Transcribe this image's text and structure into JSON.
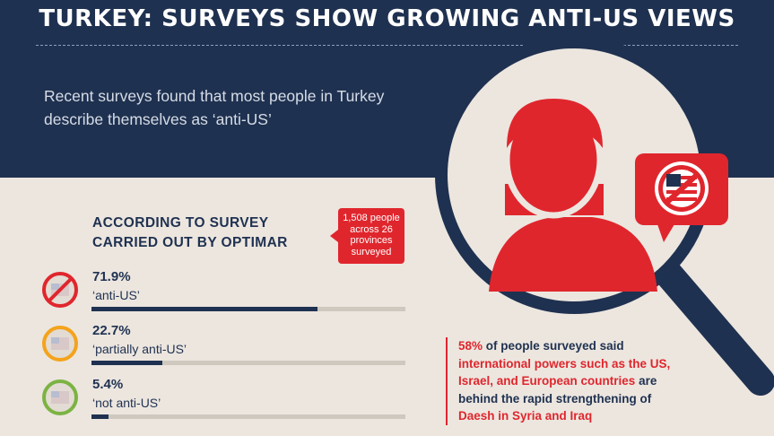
{
  "header": {
    "title": "TURKEY: SURVEYS SHOW GROWING ANTI-US VIEWS",
    "intro_line1": "Recent surveys found that most people in Turkey",
    "intro_line2": "describe themselves as ‘anti-US’"
  },
  "survey": {
    "heading_line1": "ACCORDING TO SURVEY",
    "heading_line2": "CARRIED OUT BY OPTIMAR",
    "bubble_line1": "1,508 people",
    "bubble_line2": "across 26",
    "bubble_line3": "provinces",
    "bubble_line4": "surveyed",
    "results": [
      {
        "percent": "71.9%",
        "label": "‘anti-US’",
        "value": 71.9,
        "ring_color": "#e0262d",
        "icon": "us-flag-banned-icon"
      },
      {
        "percent": "22.7%",
        "label": "‘partially anti-US’",
        "value": 22.7,
        "ring_color": "#f4a31c",
        "icon": "us-flag-partial-icon"
      },
      {
        "percent": "5.4%",
        "label": "‘not anti-US’",
        "value": 5.4,
        "ring_color": "#7cb342",
        "icon": "us-flag-ok-icon"
      }
    ]
  },
  "stat": {
    "pct": "58%",
    "line1_rest": " of people surveyed said",
    "line2": "international powers such as the US,",
    "line3": "Israel, and European countries",
    "line3_rest": " are",
    "line4": "behind the rapid strengthening of",
    "line5": "Daesh in Syria and Iraq"
  },
  "colors": {
    "navy": "#1f3150",
    "red": "#e0262d",
    "background": "#ece6df"
  }
}
